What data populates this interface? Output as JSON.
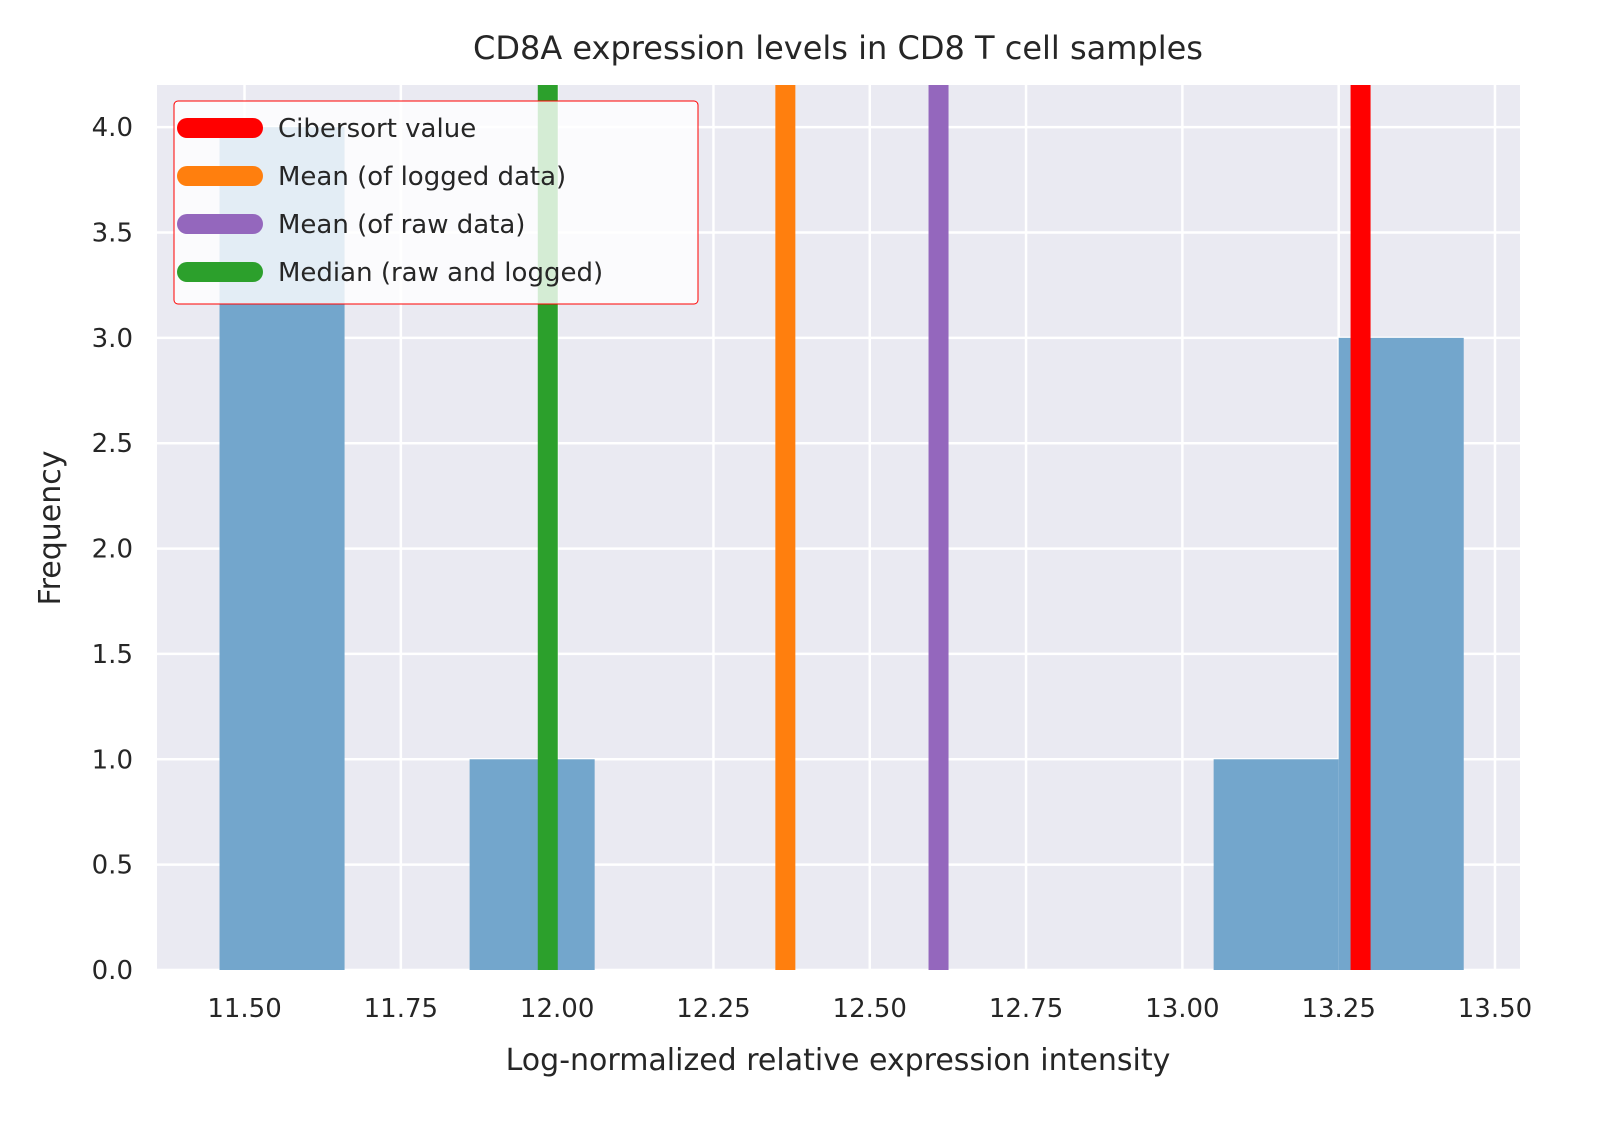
{
  "chart_data": {
    "type": "bar",
    "title": "CD8A expression levels in CD8 T cell samples",
    "xlabel": "Log-normalized relative expression intensity",
    "ylabel": "Frequency",
    "xlim": [
      11.36,
      13.54
    ],
    "ylim": [
      0,
      4.2
    ],
    "xticks": [
      11.5,
      11.75,
      12.0,
      12.25,
      12.5,
      12.75,
      13.0,
      13.25,
      13.5
    ],
    "xtick_labels": [
      "11.50",
      "11.75",
      "12.00",
      "12.25",
      "12.50",
      "12.75",
      "13.00",
      "13.25",
      "13.50"
    ],
    "yticks": [
      0,
      0.5,
      1.0,
      1.5,
      2.0,
      2.5,
      3.0,
      3.5,
      4.0
    ],
    "ytick_labels": [
      "0.0",
      "0.5",
      "1.0",
      "1.5",
      "2.0",
      "2.5",
      "3.0",
      "3.5",
      "4.0"
    ],
    "grid": true,
    "legend_position": "top-left",
    "histogram": {
      "color": "#73a6cc",
      "bins": [
        {
          "x0": 11.46,
          "x1": 11.66,
          "count": 4
        },
        {
          "x0": 11.86,
          "x1": 12.06,
          "count": 1
        },
        {
          "x0": 13.05,
          "x1": 13.25,
          "count": 1
        },
        {
          "x0": 13.25,
          "x1": 13.45,
          "count": 3
        }
      ]
    },
    "series": [
      {
        "name": "Cibersort value",
        "x": 13.285,
        "color": "#ff0000"
      },
      {
        "name": "Mean (of logged data)",
        "x": 12.365,
        "color": "#ff7f0e"
      },
      {
        "name": "Mean (of raw data)",
        "x": 12.61,
        "color": "#9467bd"
      },
      {
        "name": "Median (raw and logged)",
        "x": 11.985,
        "color": "#2ca02c"
      }
    ]
  },
  "colors": {
    "plot_background": "#eaeaf2",
    "grid": "#ffffff",
    "text": "#262626",
    "legend_border": "#ff0000"
  }
}
